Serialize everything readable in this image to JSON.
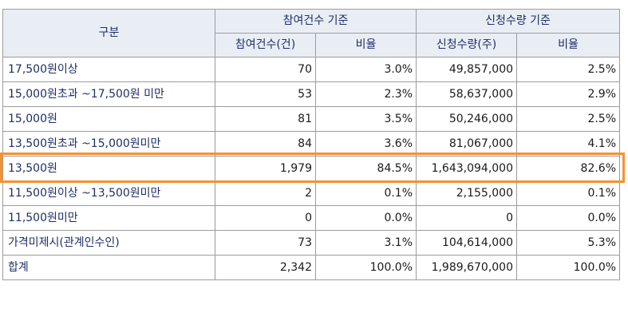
{
  "header": {
    "category": "구분",
    "group_participation": "참여건수 기준",
    "group_subscription": "신청수량 기준",
    "participation_count": "참여건수(건)",
    "participation_ratio": "비율",
    "subscription_qty": "신청수량(주)",
    "subscription_ratio": "비율"
  },
  "rows": [
    {
      "label": "17,500원이상",
      "count": "70",
      "count_ratio": "3.0%",
      "qty": "49,857,000",
      "qty_ratio": "2.5%"
    },
    {
      "label": "15,000원초과 ~17,500원 미만",
      "count": "53",
      "count_ratio": "2.3%",
      "qty": "58,637,000",
      "qty_ratio": "2.9%"
    },
    {
      "label": "15,000원",
      "count": "81",
      "count_ratio": "3.5%",
      "qty": "50,246,000",
      "qty_ratio": "2.5%"
    },
    {
      "label": "13,500원초과 ~15,000원미만",
      "count": "84",
      "count_ratio": "3.6%",
      "qty": "81,067,000",
      "qty_ratio": "4.1%"
    },
    {
      "label": "13,500원",
      "count": "1,979",
      "count_ratio": "84.5%",
      "qty": "1,643,094,000",
      "qty_ratio": "82.6%"
    },
    {
      "label": "11,500원이상 ~13,500원미만",
      "count": "2",
      "count_ratio": "0.1%",
      "qty": "2,155,000",
      "qty_ratio": "0.1%"
    },
    {
      "label": "11,500원미만",
      "count": "0",
      "count_ratio": "0.0%",
      "qty": "0",
      "qty_ratio": "0.0%"
    },
    {
      "label": "가격미제시(관계인수인)",
      "count": "73",
      "count_ratio": "3.1%",
      "qty": "104,614,000",
      "qty_ratio": "5.3%"
    },
    {
      "label": "합계",
      "count": "2,342",
      "count_ratio": "100.0%",
      "qty": "1,989,670,000",
      "qty_ratio": "100.0%"
    }
  ],
  "colors": {
    "header_bg": "#e9eef5",
    "label_text": "#1f2f66",
    "border": "#9c9c9c",
    "highlight": "#f4922f"
  }
}
